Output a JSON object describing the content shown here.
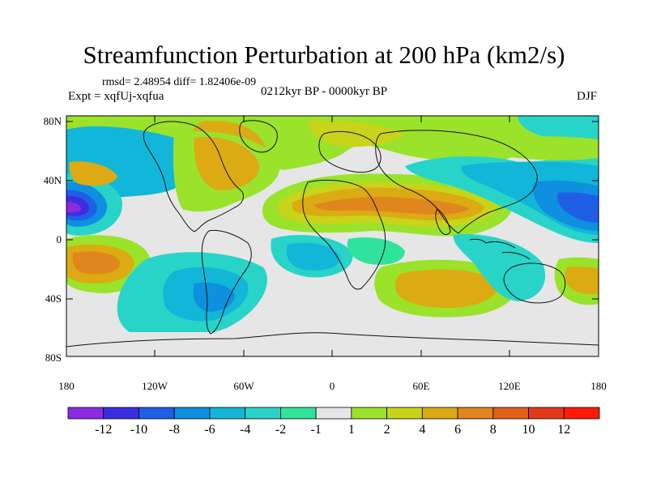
{
  "title": "Streamfunction Perturbation at 200 hPa (km2/s)",
  "stats_line": "rmsd= 2.48954 diff= 1.82406e-09",
  "experiment_line": "Expt = xqfUj-xqfua",
  "period_line": "0212kyr BP - 0000kyr BP",
  "season": "DJF",
  "lat_labels": [
    "80N",
    "40N",
    "0",
    "40S",
    "80S"
  ],
  "lon_labels": [
    "180",
    "120W",
    "60W",
    "0",
    "60E",
    "120E",
    "180"
  ],
  "colorbar": {
    "labels": [
      "-12",
      "-10",
      "-8",
      "-6",
      "-4",
      "-2",
      "-1",
      "1",
      "2",
      "4",
      "6",
      "8",
      "10",
      "12"
    ],
    "colors": [
      "#8a2be2",
      "#3c2ee0",
      "#1f5fe6",
      "#0e8fe0",
      "#12b6d8",
      "#28d4c8",
      "#30e39a",
      "#e6e6e6",
      "#9be22a",
      "#c8d419",
      "#dcaa12",
      "#e0861e",
      "#e06018",
      "#e23a18",
      "#ff1a0a"
    ]
  },
  "chart_data": {
    "type": "heatmap",
    "variable": "Streamfunction Perturbation at 200 hPa (km2/s)",
    "lat_range": [
      -90,
      90
    ],
    "lon_range": [
      -180,
      180
    ],
    "contour_levels": [
      -12,
      -10,
      -8,
      -6,
      -4,
      -2,
      -1,
      1,
      2,
      4,
      6,
      8,
      10,
      12
    ],
    "features": [
      {
        "lat": 18,
        "lon": -172,
        "value": -12
      },
      {
        "lat": 18,
        "lon": 175,
        "value": -8
      },
      {
        "lat": 22,
        "lon": 45,
        "value": 6
      },
      {
        "lat": 22,
        "lon": 75,
        "value": 6
      },
      {
        "lat": 60,
        "lon": -75,
        "value": 4
      },
      {
        "lat": -20,
        "lon": -155,
        "value": 4
      },
      {
        "lat": -40,
        "lon": 70,
        "value": 4
      },
      {
        "lat": 70,
        "lon": 5,
        "value": 1
      },
      {
        "lat": 48,
        "lon": -130,
        "value": -4
      },
      {
        "lat": 45,
        "lon": 100,
        "value": -2
      },
      {
        "lat": -30,
        "lon": -65,
        "value": -4
      },
      {
        "lat": -20,
        "lon": -10,
        "value": -4
      },
      {
        "lat": -5,
        "lon": 100,
        "value": -2
      },
      {
        "lat": -25,
        "lon": -100,
        "value": -2
      },
      {
        "lat": 42,
        "lon": -170,
        "value": 4
      },
      {
        "lat": 80,
        "lon": 160,
        "value": -2
      }
    ]
  }
}
